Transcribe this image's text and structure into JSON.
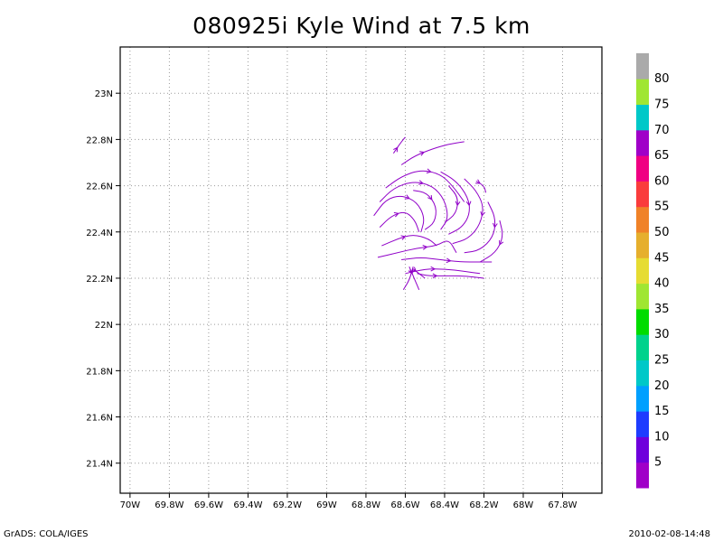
{
  "title": "080925i Kyle Wind at 7.5 km",
  "footer": {
    "left": "GrADS: COLA/IGES",
    "right": "2010-02-08-14:48"
  },
  "map": {
    "lon_range": [
      -70.05,
      -67.6
    ],
    "lat_range": [
      21.27,
      23.2
    ],
    "x_ticks": [
      {
        "value": -70.0,
        "label": "70W"
      },
      {
        "value": -69.8,
        "label": "69.8W"
      },
      {
        "value": -69.6,
        "label": "69.6W"
      },
      {
        "value": -69.4,
        "label": "69.4W"
      },
      {
        "value": -69.2,
        "label": "69.2W"
      },
      {
        "value": -69.0,
        "label": "69W"
      },
      {
        "value": -68.8,
        "label": "68.8W"
      },
      {
        "value": -68.6,
        "label": "68.6W"
      },
      {
        "value": -68.4,
        "label": "68.4W"
      },
      {
        "value": -68.2,
        "label": "68.2W"
      },
      {
        "value": -68.0,
        "label": "68W"
      },
      {
        "value": -67.8,
        "label": "67.8W"
      }
    ],
    "y_ticks": [
      {
        "value": 21.4,
        "label": "21.4N"
      },
      {
        "value": 21.6,
        "label": "21.6N"
      },
      {
        "value": 21.8,
        "label": "21.8N"
      },
      {
        "value": 22.0,
        "label": "22N"
      },
      {
        "value": 22.2,
        "label": "22.2N"
      },
      {
        "value": 22.4,
        "label": "22.4N"
      },
      {
        "value": 22.6,
        "label": "22.6N"
      },
      {
        "value": 22.8,
        "label": "22.8N"
      },
      {
        "value": 23.0,
        "label": "23N"
      }
    ],
    "streamline_color": "#9000c8",
    "streamlines": [
      [
        [
          -68.66,
          22.74
        ],
        [
          -68.62,
          22.79
        ],
        [
          -68.6,
          22.81
        ]
      ],
      [
        [
          -68.62,
          22.69
        ],
        [
          -68.55,
          22.73
        ],
        [
          -68.46,
          22.76
        ],
        [
          -68.38,
          22.78
        ],
        [
          -68.3,
          22.79
        ]
      ],
      [
        [
          -68.7,
          22.59
        ],
        [
          -68.62,
          22.64
        ],
        [
          -68.52,
          22.67
        ],
        [
          -68.42,
          22.65
        ],
        [
          -68.36,
          22.6
        ],
        [
          -68.3,
          22.53
        ]
      ],
      [
        [
          -68.73,
          22.53
        ],
        [
          -68.66,
          22.59
        ],
        [
          -68.56,
          22.62
        ],
        [
          -68.46,
          22.6
        ],
        [
          -68.4,
          22.54
        ],
        [
          -68.38,
          22.46
        ],
        [
          -68.42,
          22.41
        ]
      ],
      [
        [
          -68.76,
          22.47
        ],
        [
          -68.7,
          22.54
        ],
        [
          -68.62,
          22.56
        ],
        [
          -68.54,
          22.53
        ],
        [
          -68.5,
          22.46
        ],
        [
          -68.52,
          22.4
        ]
      ],
      [
        [
          -68.73,
          22.42
        ],
        [
          -68.67,
          22.47
        ],
        [
          -68.6,
          22.49
        ],
        [
          -68.55,
          22.45
        ],
        [
          -68.53,
          22.4
        ]
      ],
      [
        [
          -68.56,
          22.58
        ],
        [
          -68.49,
          22.57
        ],
        [
          -68.44,
          22.51
        ],
        [
          -68.45,
          22.44
        ],
        [
          -68.5,
          22.41
        ]
      ],
      [
        [
          -68.42,
          22.66
        ],
        [
          -68.34,
          22.62
        ],
        [
          -68.28,
          22.55
        ],
        [
          -68.27,
          22.48
        ],
        [
          -68.31,
          22.42
        ],
        [
          -68.38,
          22.39
        ]
      ],
      [
        [
          -68.38,
          22.6
        ],
        [
          -68.33,
          22.55
        ],
        [
          -68.34,
          22.48
        ],
        [
          -68.4,
          22.44
        ]
      ],
      [
        [
          -68.3,
          22.63
        ],
        [
          -68.24,
          22.58
        ],
        [
          -68.2,
          22.51
        ],
        [
          -68.22,
          22.43
        ],
        [
          -68.28,
          22.37
        ],
        [
          -68.36,
          22.35
        ]
      ],
      [
        [
          -68.24,
          22.62
        ],
        [
          -68.2,
          22.6
        ],
        [
          -68.19,
          22.57
        ]
      ],
      [
        [
          -68.18,
          22.53
        ],
        [
          -68.14,
          22.46
        ],
        [
          -68.15,
          22.38
        ],
        [
          -68.22,
          22.32
        ],
        [
          -68.3,
          22.31
        ]
      ],
      [
        [
          -68.12,
          22.45
        ],
        [
          -68.1,
          22.38
        ],
        [
          -68.14,
          22.31
        ],
        [
          -68.22,
          22.27
        ]
      ],
      [
        [
          -68.72,
          22.34
        ],
        [
          -68.64,
          22.37
        ],
        [
          -68.56,
          22.39
        ],
        [
          -68.48,
          22.37
        ],
        [
          -68.44,
          22.34
        ]
      ],
      [
        [
          -68.74,
          22.29
        ],
        [
          -68.64,
          22.31
        ],
        [
          -68.54,
          22.33
        ],
        [
          -68.44,
          22.34
        ],
        [
          -68.38,
          22.37
        ],
        [
          -68.34,
          22.31
        ]
      ],
      [
        [
          -68.62,
          22.28
        ],
        [
          -68.52,
          22.29
        ],
        [
          -68.42,
          22.28
        ],
        [
          -68.32,
          22.27
        ],
        [
          -68.22,
          22.27
        ],
        [
          -68.16,
          22.27
        ]
      ],
      [
        [
          -68.6,
          22.22
        ],
        [
          -68.5,
          22.24
        ],
        [
          -68.4,
          22.24
        ],
        [
          -68.3,
          22.23
        ],
        [
          -68.22,
          22.22
        ]
      ],
      [
        [
          -68.54,
          22.22
        ],
        [
          -68.48,
          22.21
        ],
        [
          -68.4,
          22.21
        ],
        [
          -68.3,
          22.21
        ],
        [
          -68.2,
          22.2
        ]
      ],
      [
        [
          -68.58,
          22.25
        ],
        [
          -68.55,
          22.19
        ],
        [
          -68.53,
          22.15
        ]
      ],
      [
        [
          -68.56,
          22.25
        ],
        [
          -68.58,
          22.19
        ],
        [
          -68.61,
          22.15
        ]
      ],
      [
        [
          -68.56,
          22.24
        ],
        [
          -68.53,
          22.22
        ],
        [
          -68.5,
          22.2
        ]
      ]
    ]
  },
  "colorbar": {
    "labels": [
      "5",
      "10",
      "15",
      "20",
      "25",
      "30",
      "35",
      "40",
      "45",
      "50",
      "55",
      "60",
      "65",
      "70",
      "75",
      "80"
    ],
    "colors": [
      "#a000c8",
      "#6e00dc",
      "#1e3cff",
      "#00a0ff",
      "#00c8c8",
      "#00d28c",
      "#00dc00",
      "#a0e632",
      "#e6dc32",
      "#e6af2d",
      "#f08228",
      "#fa3c3c",
      "#f00082",
      "#a000c8",
      "#00c8c8",
      "#a0e632",
      "#aaaaaa"
    ]
  }
}
